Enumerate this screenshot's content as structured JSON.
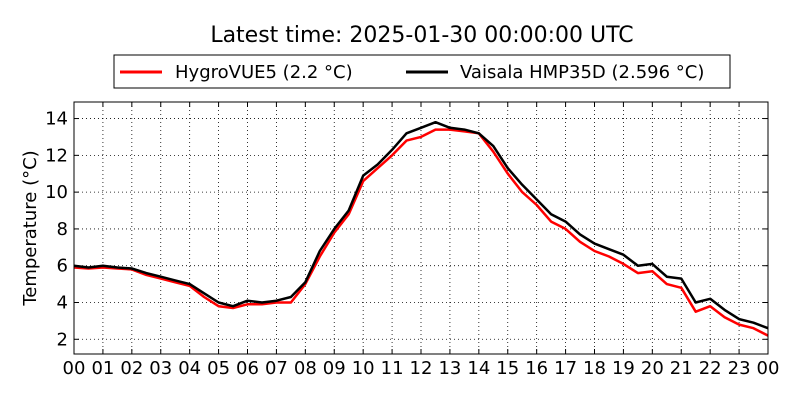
{
  "chart_data": {
    "type": "line",
    "title": "Latest time: 2025-01-30 00:00:00 UTC",
    "xlabel": "",
    "ylabel": "Temperature (°C)",
    "x_tick_labels": [
      "00",
      "01",
      "02",
      "03",
      "04",
      "05",
      "06",
      "07",
      "08",
      "09",
      "10",
      "11",
      "12",
      "13",
      "14",
      "15",
      "16",
      "17",
      "18",
      "19",
      "20",
      "21",
      "22",
      "23",
      "00"
    ],
    "y_ticks": [
      2,
      4,
      6,
      8,
      10,
      12,
      14
    ],
    "xlim": [
      0,
      24
    ],
    "ylim": [
      1.2,
      14.9
    ],
    "grid": true,
    "legend_position": "top",
    "x": [
      0,
      0.5,
      1,
      1.5,
      2,
      2.5,
      3,
      3.5,
      4,
      4.5,
      5,
      5.5,
      6,
      6.5,
      7,
      7.5,
      8,
      8.5,
      9,
      9.5,
      10,
      10.5,
      11,
      11.5,
      12,
      12.5,
      13,
      13.5,
      14,
      14.5,
      15,
      15.5,
      16,
      16.5,
      17,
      17.5,
      18,
      18.5,
      19,
      19.5,
      20,
      20.5,
      21,
      21.5,
      22,
      22.5,
      23,
      23.5,
      24
    ],
    "series": [
      {
        "name": "HygroVUE5 (2.2 °C)",
        "color": "#ff0000",
        "values": [
          5.9,
          5.85,
          5.9,
          5.85,
          5.8,
          5.5,
          5.3,
          5.1,
          4.9,
          4.3,
          3.8,
          3.7,
          3.9,
          3.9,
          4.0,
          4.0,
          5.0,
          6.5,
          7.8,
          8.8,
          10.6,
          11.3,
          12.0,
          12.8,
          13.0,
          13.4,
          13.4,
          13.3,
          13.2,
          12.2,
          11.0,
          10.0,
          9.3,
          8.4,
          8.0,
          7.3,
          6.8,
          6.5,
          6.1,
          5.6,
          5.7,
          5.0,
          4.8,
          3.5,
          3.8,
          3.2,
          2.8,
          2.6,
          2.2
        ]
      },
      {
        "name": "Vaisala HMP35D (2.596 °C)",
        "color": "#000000",
        "values": [
          6.0,
          5.9,
          6.0,
          5.9,
          5.85,
          5.6,
          5.4,
          5.2,
          5.0,
          4.5,
          4.0,
          3.8,
          4.1,
          4.0,
          4.1,
          4.3,
          5.1,
          6.8,
          8.0,
          9.0,
          10.9,
          11.5,
          12.3,
          13.2,
          13.5,
          13.8,
          13.5,
          13.4,
          13.2,
          12.5,
          11.3,
          10.4,
          9.6,
          8.8,
          8.4,
          7.7,
          7.2,
          6.9,
          6.6,
          6.0,
          6.1,
          5.4,
          5.3,
          4.0,
          4.2,
          3.6,
          3.1,
          2.9,
          2.6
        ]
      }
    ]
  }
}
